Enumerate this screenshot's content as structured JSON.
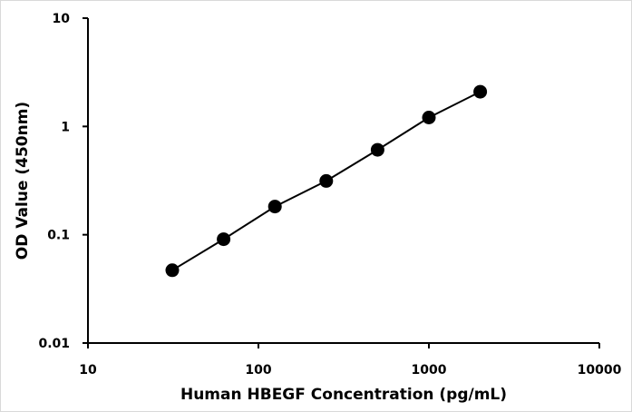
{
  "chart_data": {
    "type": "line",
    "xlabel": "Human HBEGF Concentration (pg/mL)",
    "ylabel": "OD Value (450nm)",
    "x_scale": "log",
    "y_scale": "log",
    "xlim": [
      10,
      10000
    ],
    "ylim": [
      0.01,
      10
    ],
    "x_ticks": [
      "10",
      "100",
      "1000",
      "10000"
    ],
    "y_ticks": [
      "0.01",
      "0.1",
      "1",
      "10"
    ],
    "grid": false,
    "series": [
      {
        "x": [
          31.25,
          62.5,
          125,
          250,
          500,
          1000,
          2000
        ],
        "y": [
          0.047,
          0.091,
          0.182,
          0.314,
          0.608,
          1.21,
          2.09
        ],
        "color": "#000000",
        "marker": "circle"
      }
    ]
  }
}
